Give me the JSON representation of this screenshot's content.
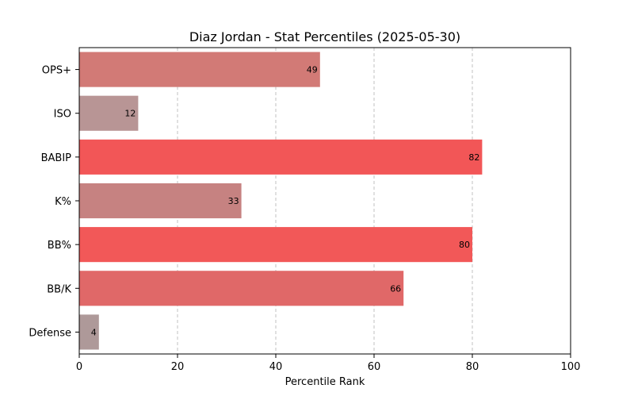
{
  "chart_data": {
    "type": "bar",
    "orientation": "horizontal",
    "title": "Diaz Jordan - Stat Percentiles (2025-05-30)",
    "xlabel": "Percentile Rank",
    "ylabel": "",
    "xlim": [
      0,
      100
    ],
    "xticks": [
      "0",
      "20",
      "40",
      "60",
      "80",
      "100"
    ],
    "grid": "x-dashed",
    "categories": [
      "OPS+",
      "ISO",
      "BABIP",
      "K%",
      "BB%",
      "BB/K",
      "Defense"
    ],
    "values": [
      49,
      12,
      82,
      33,
      80,
      66,
      4
    ],
    "value_labels": [
      "49",
      "12",
      "82",
      "33",
      "80",
      "66",
      "4"
    ],
    "bar_colors": [
      "#d27a76",
      "#b89595",
      "#f25657",
      "#c68281",
      "#f25858",
      "#e06868",
      "#ae9999"
    ]
  }
}
